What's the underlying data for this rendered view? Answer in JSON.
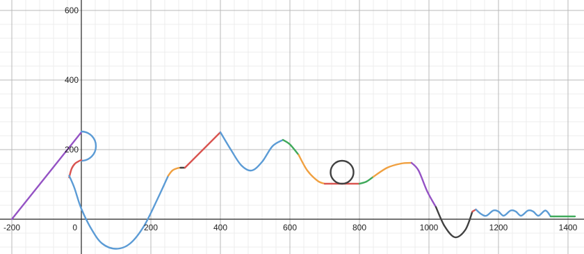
{
  "chart_data": {
    "type": "line",
    "title": "",
    "xlabel": "",
    "ylabel": "",
    "grid": true,
    "xlim": [
      -200,
      1430
    ],
    "ylim": [
      -105,
      605
    ],
    "x_ticks": [
      {
        "value": -200,
        "label": "-200"
      },
      {
        "value": 0,
        "label": "0"
      },
      {
        "value": 200,
        "label": "200"
      },
      {
        "value": 400,
        "label": "400"
      },
      {
        "value": 600,
        "label": "600"
      },
      {
        "value": 800,
        "label": "800"
      },
      {
        "value": 1000,
        "label": "1000"
      },
      {
        "value": 1200,
        "label": "1200"
      },
      {
        "value": 1400,
        "label": "1400"
      }
    ],
    "y_ticks": [
      {
        "value": 200,
        "label": "200"
      },
      {
        "value": 400,
        "label": "400"
      },
      {
        "value": 600,
        "label": "600"
      }
    ],
    "colors": {
      "purple": "#9452c4",
      "blue": "#5b9bd5",
      "red": "#d9534f",
      "orange": "#f0a040",
      "green": "#3fa95a",
      "black": "#404040"
    },
    "series": [
      {
        "color": "purple",
        "x": [
          -200,
          0
        ],
        "y": [
          0,
          250
        ]
      },
      {
        "color": "blue",
        "kind": "circle",
        "cx": 0,
        "cy": 210,
        "r": 42,
        "arc": [
          -90,
          90
        ]
      },
      {
        "color": "red",
        "x": [
          -35,
          -28,
          -18,
          -5,
          0
        ],
        "y": [
          120,
          145,
          160,
          168,
          170
        ]
      },
      {
        "color": "blue",
        "x": [
          -35,
          -20,
          0,
          30,
          60,
          100,
          140,
          180,
          220,
          250
        ],
        "y": [
          125,
          90,
          30,
          -30,
          -70,
          -85,
          -70,
          -20,
          60,
          125
        ]
      },
      {
        "color": "orange",
        "x": [
          250,
          262,
          278,
          290
        ],
        "y": [
          125,
          140,
          147,
          148
        ]
      },
      {
        "color": "black",
        "x": [
          285,
          298
        ],
        "y": [
          148,
          148
        ]
      },
      {
        "color": "red",
        "x": [
          298,
          400
        ],
        "y": [
          148,
          250
        ]
      },
      {
        "color": "blue",
        "x": [
          400,
          430,
          460,
          490,
          520,
          550,
          580
        ],
        "y": [
          250,
          200,
          155,
          140,
          165,
          210,
          228
        ]
      },
      {
        "color": "green",
        "x": [
          580,
          600,
          625
        ],
        "y": [
          228,
          215,
          185
        ]
      },
      {
        "color": "orange",
        "x": [
          625,
          650,
          680,
          700
        ],
        "y": [
          185,
          140,
          110,
          102
        ]
      },
      {
        "color": "red",
        "x": [
          700,
          800
        ],
        "y": [
          102,
          102
        ]
      },
      {
        "color": "black",
        "kind": "circle",
        "cx": 750,
        "cy": 135,
        "r": 33,
        "arc": [
          0,
          360
        ]
      },
      {
        "color": "green",
        "x": [
          800,
          820,
          840
        ],
        "y": [
          102,
          108,
          122
        ]
      },
      {
        "color": "orange",
        "x": [
          840,
          880,
          920,
          950
        ],
        "y": [
          122,
          148,
          160,
          162
        ]
      },
      {
        "color": "purple",
        "x": [
          950,
          970,
          995,
          1020
        ],
        "y": [
          162,
          140,
          80,
          35
        ]
      },
      {
        "color": "black",
        "x": [
          1020,
          1045,
          1075,
          1105,
          1125
        ],
        "y": [
          35,
          -20,
          -52,
          -30,
          22
        ]
      },
      {
        "color": "red",
        "x": [
          1125,
          1135
        ],
        "y": [
          22,
          28
        ]
      },
      {
        "color": "blue",
        "x": [
          1135,
          1150,
          1165,
          1185,
          1200,
          1215,
          1235,
          1250,
          1265,
          1285,
          1300,
          1315,
          1335,
          1350
        ],
        "y": [
          28,
          15,
          10,
          25,
          22,
          10,
          25,
          22,
          10,
          25,
          22,
          10,
          25,
          8
        ]
      },
      {
        "color": "green",
        "x": [
          1350,
          1380,
          1420
        ],
        "y": [
          8,
          8,
          8
        ]
      }
    ]
  }
}
